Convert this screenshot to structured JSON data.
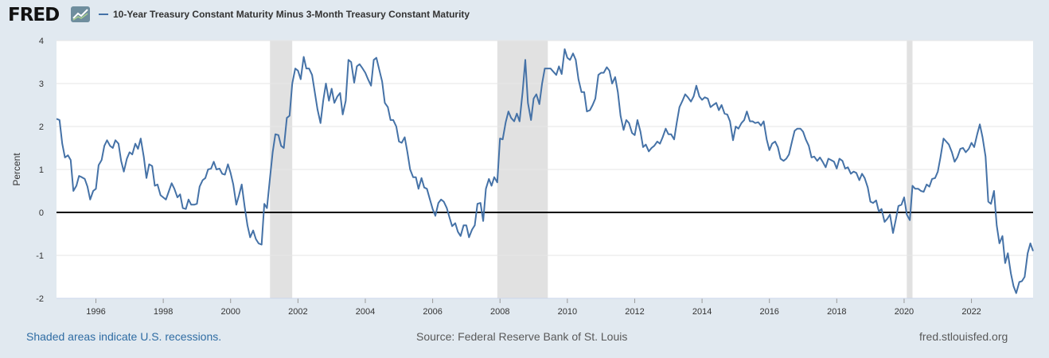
{
  "header": {
    "logo_text": "FRED",
    "logo_icon": "chart-line-icon",
    "series_title": "10-Year Treasury Constant Maturity Minus 3-Month Treasury Constant Maturity"
  },
  "footer": {
    "recession_note": "Shaded areas indicate U.S. recessions.",
    "source": "Source: Federal Reserve Bank of St. Louis",
    "site": "fred.stlouisfed.org"
  },
  "colors": {
    "line": "#4572a7",
    "recession": "#e1e1e1",
    "zero_line": "#000000",
    "background": "#e1e9f0",
    "plot_background": "#ffffff"
  },
  "chart_data": {
    "type": "line",
    "title": "10-Year Treasury Constant Maturity Minus 3-Month Treasury Constant Maturity",
    "ylabel": "Percent",
    "xlabel": "",
    "xlim": [
      1994.83,
      2023.83
    ],
    "ylim": [
      -2,
      4
    ],
    "x_ticks": [
      1996,
      1998,
      2000,
      2002,
      2004,
      2006,
      2008,
      2010,
      2012,
      2014,
      2016,
      2018,
      2020,
      2022
    ],
    "y_ticks": [
      -2,
      -1,
      0,
      1,
      2,
      3,
      4
    ],
    "grid": "horizontal",
    "legend": "top-left",
    "recessions": [
      [
        2001.17,
        2001.83
      ],
      [
        2007.92,
        2009.42
      ],
      [
        2020.08,
        2020.25
      ]
    ],
    "series": [
      {
        "name": "10-Year Treasury Constant Maturity Minus 3-Month Treasury Constant Maturity",
        "x": [
          1994.83,
          1994.92,
          1995.0,
          1995.08,
          1995.17,
          1995.25,
          1995.33,
          1995.42,
          1995.5,
          1995.58,
          1995.67,
          1995.75,
          1995.83,
          1995.92,
          1996.0,
          1996.08,
          1996.17,
          1996.25,
          1996.33,
          1996.42,
          1996.5,
          1996.58,
          1996.67,
          1996.75,
          1996.83,
          1996.92,
          1997.0,
          1997.08,
          1997.17,
          1997.25,
          1997.33,
          1997.42,
          1997.5,
          1997.58,
          1997.67,
          1997.75,
          1997.83,
          1997.92,
          1998.0,
          1998.08,
          1998.17,
          1998.25,
          1998.33,
          1998.42,
          1998.5,
          1998.58,
          1998.67,
          1998.75,
          1998.83,
          1998.92,
          1999.0,
          1999.08,
          1999.17,
          1999.25,
          1999.33,
          1999.42,
          1999.5,
          1999.58,
          1999.67,
          1999.75,
          1999.83,
          1999.92,
          2000.0,
          2000.08,
          2000.17,
          2000.25,
          2000.33,
          2000.42,
          2000.5,
          2000.58,
          2000.67,
          2000.75,
          2000.83,
          2000.92,
          2001.0,
          2001.08,
          2001.17,
          2001.25,
          2001.33,
          2001.42,
          2001.5,
          2001.58,
          2001.67,
          2001.75,
          2001.83,
          2001.92,
          2002.0,
          2002.08,
          2002.17,
          2002.25,
          2002.33,
          2002.42,
          2002.5,
          2002.58,
          2002.67,
          2002.75,
          2002.83,
          2002.92,
          2003.0,
          2003.08,
          2003.17,
          2003.25,
          2003.33,
          2003.42,
          2003.5,
          2003.58,
          2003.67,
          2003.75,
          2003.83,
          2003.92,
          2004.0,
          2004.08,
          2004.17,
          2004.25,
          2004.33,
          2004.42,
          2004.5,
          2004.58,
          2004.67,
          2004.75,
          2004.83,
          2004.92,
          2005.0,
          2005.08,
          2005.17,
          2005.25,
          2005.33,
          2005.42,
          2005.5,
          2005.58,
          2005.67,
          2005.75,
          2005.83,
          2005.92,
          2006.0,
          2006.08,
          2006.17,
          2006.25,
          2006.33,
          2006.42,
          2006.5,
          2006.58,
          2006.67,
          2006.75,
          2006.83,
          2006.92,
          2007.0,
          2007.08,
          2007.17,
          2007.25,
          2007.33,
          2007.42,
          2007.5,
          2007.58,
          2007.67,
          2007.75,
          2007.83,
          2007.92,
          2008.0,
          2008.08,
          2008.17,
          2008.25,
          2008.33,
          2008.42,
          2008.5,
          2008.58,
          2008.67,
          2008.75,
          2008.83,
          2008.92,
          2009.0,
          2009.08,
          2009.17,
          2009.25,
          2009.33,
          2009.42,
          2009.5,
          2009.58,
          2009.67,
          2009.75,
          2009.83,
          2009.92,
          2010.0,
          2010.08,
          2010.17,
          2010.25,
          2010.33,
          2010.42,
          2010.5,
          2010.58,
          2010.67,
          2010.75,
          2010.83,
          2010.92,
          2011.0,
          2011.08,
          2011.17,
          2011.25,
          2011.33,
          2011.42,
          2011.5,
          2011.58,
          2011.67,
          2011.75,
          2011.83,
          2011.92,
          2012.0,
          2012.08,
          2012.17,
          2012.25,
          2012.33,
          2012.42,
          2012.5,
          2012.58,
          2012.67,
          2012.75,
          2012.83,
          2012.92,
          2013.0,
          2013.08,
          2013.17,
          2013.25,
          2013.33,
          2013.42,
          2013.5,
          2013.58,
          2013.67,
          2013.75,
          2013.83,
          2013.92,
          2014.0,
          2014.08,
          2014.17,
          2014.25,
          2014.33,
          2014.42,
          2014.5,
          2014.58,
          2014.67,
          2014.75,
          2014.83,
          2014.92,
          2015.0,
          2015.08,
          2015.17,
          2015.25,
          2015.33,
          2015.42,
          2015.5,
          2015.58,
          2015.67,
          2015.75,
          2015.83,
          2015.92,
          2016.0,
          2016.08,
          2016.17,
          2016.25,
          2016.33,
          2016.42,
          2016.5,
          2016.58,
          2016.67,
          2016.75,
          2016.83,
          2016.92,
          2017.0,
          2017.08,
          2017.17,
          2017.25,
          2017.33,
          2017.42,
          2017.5,
          2017.58,
          2017.67,
          2017.75,
          2017.83,
          2017.92,
          2018.0,
          2018.08,
          2018.17,
          2018.25,
          2018.33,
          2018.42,
          2018.5,
          2018.58,
          2018.67,
          2018.75,
          2018.83,
          2018.92,
          2019.0,
          2019.08,
          2019.17,
          2019.25,
          2019.33,
          2019.42,
          2019.5,
          2019.58,
          2019.67,
          2019.75,
          2019.83,
          2019.92,
          2020.0,
          2020.08,
          2020.17,
          2020.25,
          2020.33,
          2020.42,
          2020.5,
          2020.58,
          2020.67,
          2020.75,
          2020.83,
          2020.92,
          2021.0,
          2021.08,
          2021.17,
          2021.25,
          2021.33,
          2021.42,
          2021.5,
          2021.58,
          2021.67,
          2021.75,
          2021.83,
          2021.92,
          2022.0,
          2022.08,
          2022.17,
          2022.25,
          2022.33,
          2022.42,
          2022.5,
          2022.58,
          2022.67,
          2022.75,
          2022.83,
          2022.92,
          2023.0,
          2023.08,
          2023.17,
          2023.25,
          2023.33,
          2023.42,
          2023.5,
          2023.58,
          2023.67,
          2023.75,
          2023.83
        ],
        "values": [
          2.18,
          2.15,
          1.6,
          1.28,
          1.33,
          1.22,
          0.5,
          0.62,
          0.85,
          0.82,
          0.78,
          0.6,
          0.3,
          0.5,
          0.55,
          1.1,
          1.22,
          1.55,
          1.68,
          1.55,
          1.5,
          1.68,
          1.6,
          1.2,
          0.95,
          1.25,
          1.4,
          1.35,
          1.6,
          1.48,
          1.72,
          1.3,
          0.8,
          1.12,
          1.08,
          0.62,
          0.65,
          0.4,
          0.35,
          0.3,
          0.5,
          0.68,
          0.55,
          0.35,
          0.42,
          0.1,
          0.08,
          0.3,
          0.18,
          0.18,
          0.2,
          0.6,
          0.75,
          0.8,
          1.0,
          1.02,
          1.18,
          1.0,
          1.02,
          0.9,
          0.88,
          1.12,
          0.92,
          0.65,
          0.18,
          0.4,
          0.65,
          0.12,
          -0.3,
          -0.58,
          -0.42,
          -0.62,
          -0.72,
          -0.75,
          0.2,
          0.1,
          0.8,
          1.4,
          1.82,
          1.8,
          1.55,
          1.5,
          2.2,
          2.25,
          3.0,
          3.35,
          3.3,
          3.1,
          3.62,
          3.35,
          3.35,
          3.2,
          2.8,
          2.4,
          2.08,
          2.6,
          3.0,
          2.6,
          2.88,
          2.55,
          2.7,
          2.78,
          2.28,
          2.6,
          3.55,
          3.5,
          3.02,
          3.4,
          3.45,
          3.35,
          3.25,
          3.1,
          2.95,
          3.55,
          3.6,
          3.3,
          3.05,
          2.55,
          2.45,
          2.15,
          2.15,
          2.0,
          1.65,
          1.62,
          1.75,
          1.4,
          1.0,
          0.82,
          0.82,
          0.55,
          0.8,
          0.58,
          0.55,
          0.3,
          0.08,
          -0.08,
          0.22,
          0.3,
          0.25,
          0.1,
          -0.12,
          -0.32,
          -0.25,
          -0.45,
          -0.55,
          -0.3,
          -0.3,
          -0.58,
          -0.4,
          -0.3,
          0.2,
          0.22,
          -0.2,
          0.55,
          0.78,
          0.62,
          0.82,
          0.7,
          1.72,
          1.7,
          2.1,
          2.35,
          2.2,
          2.12,
          2.3,
          2.12,
          2.8,
          3.55,
          2.55,
          2.15,
          2.65,
          2.75,
          2.52,
          3.0,
          3.35,
          3.35,
          3.35,
          3.28,
          3.2,
          3.4,
          3.22,
          3.8,
          3.6,
          3.55,
          3.7,
          3.55,
          3.1,
          2.8,
          2.8,
          2.35,
          2.38,
          2.5,
          2.65,
          3.2,
          3.25,
          3.25,
          3.38,
          3.3,
          3.0,
          3.15,
          2.8,
          2.25,
          1.92,
          2.15,
          2.08,
          1.85,
          1.8,
          2.15,
          1.88,
          1.52,
          1.58,
          1.42,
          1.5,
          1.55,
          1.65,
          1.6,
          1.75,
          1.95,
          1.82,
          1.82,
          1.7,
          2.1,
          2.45,
          2.6,
          2.75,
          2.68,
          2.58,
          2.7,
          2.95,
          2.7,
          2.62,
          2.68,
          2.65,
          2.45,
          2.5,
          2.55,
          2.38,
          2.5,
          2.3,
          2.28,
          2.12,
          1.68,
          2.0,
          1.95,
          2.08,
          2.15,
          2.35,
          2.12,
          2.12,
          2.08,
          2.1,
          2.02,
          2.12,
          1.7,
          1.45,
          1.6,
          1.65,
          1.52,
          1.25,
          1.2,
          1.25,
          1.35,
          1.65,
          1.9,
          1.95,
          1.95,
          1.88,
          1.7,
          1.55,
          1.28,
          1.3,
          1.2,
          1.28,
          1.18,
          1.05,
          1.25,
          1.22,
          1.18,
          1.02,
          1.25,
          1.2,
          1.02,
          1.05,
          0.9,
          0.95,
          0.92,
          0.75,
          0.9,
          0.8,
          0.58,
          0.25,
          0.22,
          0.28,
          0.02,
          0.08,
          -0.22,
          -0.15,
          -0.05,
          -0.48,
          -0.18,
          0.15,
          0.18,
          0.35,
          -0.05,
          -0.18,
          0.62,
          0.55,
          0.55,
          0.5,
          0.48,
          0.65,
          0.6,
          0.78,
          0.8,
          0.95,
          1.28,
          1.72,
          1.65,
          1.58,
          1.4,
          1.18,
          1.28,
          1.48,
          1.5,
          1.4,
          1.48,
          1.62,
          1.52,
          1.82,
          2.05,
          1.75,
          1.3,
          0.25,
          0.2,
          0.5,
          -0.3,
          -0.72,
          -0.55,
          -1.18,
          -0.95,
          -1.42,
          -1.72,
          -1.88,
          -1.62,
          -1.6,
          -1.5,
          -0.95,
          -0.72,
          -0.9
        ]
      }
    ]
  }
}
